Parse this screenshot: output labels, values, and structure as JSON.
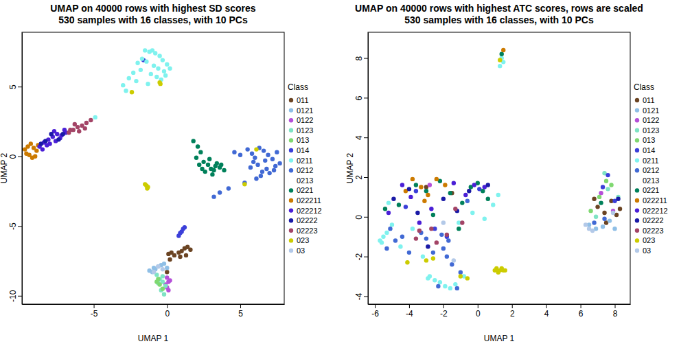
{
  "chart_data": [
    {
      "type": "scatter",
      "title": [
        "UMAP on 40000 rows with highest SD scores",
        "530 samples with 16 classes, with 10 PCs"
      ],
      "x_label": "UMAP 1",
      "y_label": "UMAP 2",
      "legend_title": "Class",
      "legend": "right",
      "marker": "circle",
      "xlim": [
        -9.9,
        8.0
      ],
      "ylim": [
        -10.6,
        8.9
      ],
      "xticks": [
        -5,
        0,
        5
      ],
      "yticks": [
        -10,
        -5,
        0,
        5
      ],
      "series": [
        {
          "name": "011",
          "color": "#6b4423",
          "x": [
            0.1,
            0.3,
            0.5,
            0.8,
            1.0,
            1.2,
            1.4,
            1.6,
            1.3,
            0.9,
            0.2,
            0.0
          ],
          "values": [
            -7.0,
            -6.9,
            -7.1,
            -6.9,
            -6.8,
            -6.6,
            -6.5,
            -6.7,
            -7.1,
            -7.2,
            -7.4,
            -8.3
          ]
        },
        {
          "name": "0121",
          "color": "#8fbfe6",
          "x": [
            -1.2,
            -0.9,
            -0.6,
            -0.4,
            -0.2,
            -0.8,
            -1.0,
            0.0
          ],
          "values": [
            -8.2,
            -8.0,
            -7.9,
            -7.8,
            -7.7,
            -8.1,
            -8.3,
            -8.0
          ]
        },
        {
          "name": "0122",
          "color": "#b54fd8",
          "x": [
            0.0,
            0.1,
            -0.1,
            0.2,
            0.0,
            0.1
          ],
          "values": [
            -8.7,
            -9.0,
            -9.2,
            -8.9,
            -9.4,
            -9.6
          ]
        },
        {
          "name": "0123",
          "color": "#7fe3c4",
          "x": [
            -0.7,
            -0.5,
            -0.3,
            -0.1,
            -0.4,
            -0.2,
            -0.6,
            -0.3
          ],
          "values": [
            -8.5,
            -8.8,
            -9.0,
            -9.3,
            -9.6,
            -9.9,
            -9.1,
            -8.6
          ]
        },
        {
          "name": "013",
          "color": "#7fd870",
          "x": [
            -0.7,
            -0.5,
            -0.6,
            -0.3
          ],
          "values": [
            -9.0,
            -9.2,
            -8.8,
            -9.5
          ]
        },
        {
          "name": "014",
          "color": "#3b3fd9",
          "x": [
            0.8,
            0.9,
            1.0,
            1.1,
            1.2,
            -1.6
          ],
          "values": [
            -5.7,
            -5.5,
            -5.4,
            -5.2,
            -5.1,
            6.9
          ]
        },
        {
          "name": "0211",
          "color": "#7ff2ee",
          "x": [
            -1.5,
            -1.2,
            -1.0,
            -0.8,
            -0.5,
            -0.3,
            0.0,
            -1.7,
            -2.0,
            -1.4,
            -0.9,
            -0.6,
            -0.2,
            -1.8,
            -2.3,
            -2.6,
            -3.0,
            -1.1,
            -0.7,
            -0.4,
            -2.1,
            -1.3,
            -0.1,
            0.2,
            -2.8,
            -4.9
          ],
          "values": [
            7.6,
            7.5,
            7.6,
            7.4,
            7.2,
            6.9,
            6.6,
            7.0,
            6.7,
            6.8,
            6.5,
            6.3,
            6.1,
            6.2,
            6.0,
            5.6,
            5.1,
            5.9,
            5.7,
            5.5,
            5.4,
            5.2,
            5.8,
            6.3,
            4.7,
            2.8
          ]
        },
        {
          "name": "0212",
          "color": "#4169d4",
          "x": [
            4.6,
            5.0,
            5.5,
            5.8,
            6.0,
            6.3,
            6.6,
            6.9,
            7.2,
            7.5,
            7.7,
            6.2,
            6.8,
            7.0,
            5.7,
            6.4,
            7.3,
            6.1,
            5.3,
            4.2,
            3.6,
            3.2,
            5.9,
            6.7,
            7.4,
            6.5
          ],
          "values": [
            0.3,
            0.1,
            0.5,
            0.2,
            -0.1,
            0.6,
            0.4,
            0.1,
            -0.2,
            0.3,
            -0.5,
            -0.6,
            -0.9,
            -1.2,
            -0.8,
            -1.4,
            -1.0,
            -1.6,
            -1.9,
            -2.3,
            -2.6,
            -2.9,
            -0.4,
            -0.3,
            -0.7,
            -1.1
          ]
        },
        {
          "name": "0213",
          "color": "#ffffff",
          "x": [],
          "values": []
        },
        {
          "name": "0221",
          "color": "#00805a",
          "x": [
            1.8,
            2.1,
            2.3,
            2.0,
            2.5,
            2.8,
            3.0,
            3.3,
            3.6,
            3.9,
            2.6,
            3.1,
            3.4,
            2.2,
            2.9,
            3.7,
            2.4,
            3.2
          ],
          "values": [
            1.1,
            0.7,
            0.3,
            -0.1,
            -0.4,
            -0.6,
            -0.9,
            -0.7,
            -0.8,
            -1.0,
            -1.1,
            -1.3,
            -0.5,
            -0.6,
            -0.2,
            -0.6,
            -0.9,
            -1.0
          ]
        },
        {
          "name": "022211",
          "color": "#cc7a00",
          "x": [
            -9.7,
            -9.5,
            -9.3,
            -9.1,
            -8.9,
            -9.6,
            -9.4,
            -9.0,
            -9.2,
            -8.8
          ],
          "values": [
            0.5,
            0.7,
            0.9,
            0.6,
            0.4,
            0.2,
            0.1,
            0.0,
            -0.1,
            0.8
          ]
        },
        {
          "name": "022212",
          "color": "#4a1fd6",
          "x": [
            -8.7,
            -8.4,
            -8.1,
            -7.8,
            -7.5,
            -7.2,
            -6.9,
            -8.5,
            -8.0,
            -7.6,
            -7.3,
            -7.0,
            -8.2,
            -7.7
          ],
          "values": [
            0.7,
            1.0,
            1.2,
            1.4,
            1.6,
            1.5,
            1.7,
            0.5,
            0.9,
            1.1,
            1.3,
            1.9,
            0.8,
            1.8
          ]
        },
        {
          "name": "02222",
          "color": "#1a1aa6",
          "x": [
            -8.3,
            -7.9,
            -7.4,
            -7.1,
            -8.6
          ],
          "values": [
            1.1,
            1.6,
            1.2,
            1.6,
            0.9
          ]
        },
        {
          "name": "02223",
          "color": "#a34466",
          "x": [
            -6.7,
            -6.4,
            -6.1,
            -5.8,
            -5.5,
            -5.2,
            -6.6,
            -6.0,
            -5.6,
            -6.3
          ],
          "values": [
            1.7,
            1.9,
            2.1,
            2.2,
            2.4,
            2.6,
            1.9,
            1.8,
            2.0,
            2.3
          ]
        },
        {
          "name": "023",
          "color": "#cccc00",
          "x": [
            -1.4,
            -1.3,
            -1.5,
            -1.35,
            -2.4,
            -0.5,
            -0.45,
            6.1,
            5.3
          ],
          "values": [
            -2.1,
            -2.2,
            -2.0,
            -2.3,
            4.6,
            5.3,
            5.2,
            0.5,
            -2.0
          ]
        },
        {
          "name": "03",
          "color": "#b3c9e8",
          "x": [
            -0.6,
            -0.3,
            -0.9
          ],
          "values": [
            -7.9,
            -8.1,
            -8.3
          ]
        }
      ]
    },
    {
      "type": "scatter",
      "title": [
        "UMAP on 40000 rows with highest ATC scores, rows are scaled",
        "530 samples with 16 classes, with 10 PCs"
      ],
      "x_label": "UMAP 1",
      "y_label": "UMAP 2",
      "legend_title": "Class",
      "legend": "right",
      "marker": "circle",
      "xlim": [
        -6.4,
        8.9
      ],
      "ylim": [
        -4.4,
        9.3
      ],
      "xticks": [
        -6,
        -4,
        -2,
        0,
        2,
        4,
        6,
        8
      ],
      "yticks": [
        -4,
        -2,
        0,
        2,
        4,
        6,
        8
      ],
      "series": [
        {
          "name": "011",
          "color": "#6b4423",
          "x": [
            7.0,
            7.4,
            7.8,
            8.1,
            7.5,
            6.8,
            8.3,
            -3.0,
            -1.5
          ],
          "values": [
            0.5,
            0.2,
            0.8,
            0.1,
            -0.3,
            0.9,
            0.4,
            1.5,
            1.2
          ]
        },
        {
          "name": "0121",
          "color": "#8fbfe6",
          "x": [
            6.5,
            6.9,
            7.3,
            7.7,
            8.0
          ],
          "values": [
            -0.4,
            -0.6,
            -0.5,
            -0.2,
            -0.6
          ]
        },
        {
          "name": "0122",
          "color": "#b54fd8",
          "x": [
            7.2,
            7.9,
            -2.8
          ],
          "values": [
            1.2,
            0.3,
            1.6
          ]
        },
        {
          "name": "0123",
          "color": "#7fe3c4",
          "x": [
            7.4,
            7.6,
            8.2,
            6.9
          ],
          "values": [
            2.2,
            1.4,
            1.0,
            0.0
          ]
        },
        {
          "name": "013",
          "color": "#7fd870",
          "x": [
            7.5,
            7.1,
            7.8,
            6.6
          ],
          "values": [
            1.8,
            1.0,
            1.6,
            0.3
          ]
        },
        {
          "name": "014",
          "color": "#3b3fd9",
          "x": [
            7.6,
            8.0,
            7.3,
            -4.2,
            -3.6,
            -1.8,
            0.1,
            -2.5
          ],
          "values": [
            2.1,
            0.8,
            1.5,
            0.5,
            1.3,
            -1.0,
            1.4,
            -0.6
          ]
        },
        {
          "name": "0211",
          "color": "#7ff2ee",
          "x": [
            1.4,
            1.5,
            1.3,
            -5.5,
            -5.6,
            -5.3,
            -5.7,
            -5.2,
            -2.8,
            -2.5,
            -2.2,
            -1.9,
            -1.6,
            -1.3,
            -2.9,
            -4.5,
            -3.8,
            -0.8,
            -0.3,
            0.4,
            0.9,
            1.2,
            -5.0,
            -3.2,
            -1.1
          ],
          "values": [
            8.0,
            7.8,
            7.6,
            -1.0,
            -1.3,
            -0.8,
            -1.2,
            0.7,
            -3.0,
            -3.2,
            -3.3,
            -3.5,
            -3.6,
            -3.4,
            -3.1,
            -1.5,
            -0.6,
            -3.0,
            0.2,
            -0.1,
            0.6,
            1.1,
            -0.4,
            -2.0,
            -0.3
          ]
        },
        {
          "name": "0212",
          "color": "#4169d4",
          "x": [
            -4.8,
            -5.1,
            -5.3,
            -2.0,
            -1.8,
            -1.5,
            -1.2,
            -2.3,
            -2.6,
            -1.7,
            -3.3,
            -3.0,
            -4.0,
            -4.4,
            -2.1,
            -1.0,
            -0.6,
            6.8,
            7.4
          ],
          "values": [
            -1.2,
            -0.6,
            -1.6,
            -1.6,
            -2.0,
            -2.4,
            -3.6,
            -3.5,
            -1.8,
            -1.2,
            -0.8,
            -1.1,
            -1.8,
            -1.0,
            -0.9,
            -2.8,
            0.8,
            -0.3,
            -0.1
          ]
        },
        {
          "name": "0213",
          "color": "#ffffff",
          "x": [],
          "values": []
        },
        {
          "name": "0221",
          "color": "#00805a",
          "x": [
            -3.6,
            -3.0,
            -2.2,
            -1.6,
            -0.9,
            -0.4,
            0.3,
            0.6,
            -4.6,
            -2.6,
            -5.4,
            -1.1,
            0.0,
            7.2,
            1.4
          ],
          "values": [
            1.6,
            1.3,
            1.8,
            1.2,
            0.7,
            1.5,
            1.3,
            0.9,
            0.6,
            0.1,
            0.4,
            -0.6,
            1.7,
            0.7,
            8.2
          ]
        },
        {
          "name": "022211",
          "color": "#cc7a00",
          "x": [
            -3.8,
            -3.3,
            -2.9,
            -2.4,
            -1.9,
            -4.2,
            -3.1,
            1.5
          ],
          "values": [
            1.9,
            1.5,
            1.1,
            1.9,
            1.6,
            1.3,
            0.8,
            8.4
          ]
        },
        {
          "name": "022212",
          "color": "#4a1fd6",
          "x": [
            -4.4,
            -3.9,
            -1.4,
            -0.2,
            0.4,
            -2.7,
            -0.7,
            -3.4,
            -5.2
          ],
          "values": [
            1.6,
            1.0,
            1.7,
            1.6,
            1.5,
            0.4,
            1.1,
            -0.3,
            0.2
          ]
        },
        {
          "name": "02222",
          "color": "#1a1aa6",
          "x": [
            -4.9,
            -4.0,
            -2.0,
            -0.5,
            0.6,
            -3.5,
            -1.2,
            8.2,
            -2.9
          ],
          "values": [
            0.9,
            1.4,
            0.9,
            1.3,
            1.6,
            0.2,
            0.3,
            0.9,
            -1.5
          ]
        },
        {
          "name": "02223",
          "color": "#a34466",
          "x": [
            -3.4,
            -2.7,
            -1.8,
            -1.3,
            -0.9,
            -2.4,
            -3.6
          ],
          "values": [
            -0.7,
            -0.6,
            -0.9,
            0.4,
            -0.3,
            -1.3,
            -1.1
          ]
        },
        {
          "name": "023",
          "color": "#cccc00",
          "x": [
            1.0,
            1.1,
            1.2,
            1.3,
            1.4,
            1.5,
            1.6,
            1.3,
            -2.6,
            -1.0,
            -0.6,
            -3.0,
            -4.1
          ],
          "values": [
            -2.7,
            -2.6,
            -2.8,
            -2.7,
            -2.6,
            -2.7,
            -2.7,
            7.9,
            -2.1,
            -3.0,
            -3.1,
            -2.2,
            -2.3
          ]
        },
        {
          "name": "03",
          "color": "#b3c9e8",
          "x": [
            6.3,
            6.5,
            6.7,
            7.9,
            -2.0,
            -1.4
          ],
          "values": [
            -0.4,
            -0.6,
            -0.7,
            0.2,
            -0.3,
            -2.2
          ]
        }
      ]
    }
  ]
}
